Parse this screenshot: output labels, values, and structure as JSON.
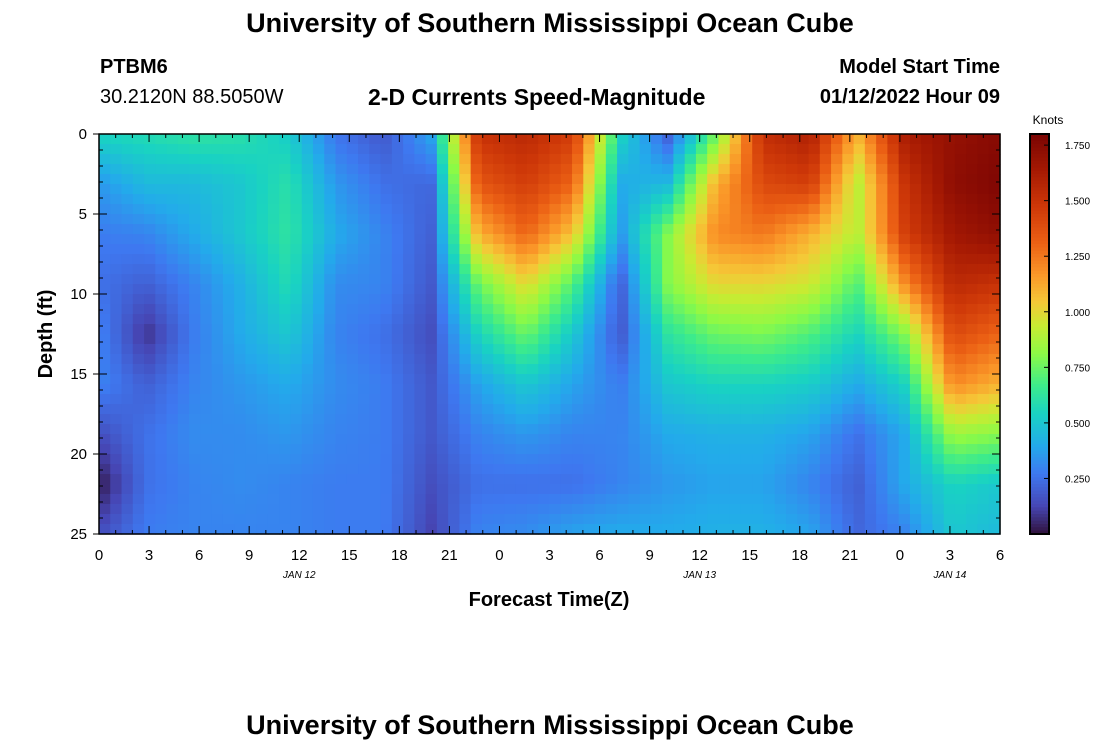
{
  "header": {
    "title": "University of Southern Mississippi Ocean Cube",
    "station": "PTBM6",
    "location": "30.2120N  88.5050W",
    "subtitle": "2-D Currents Speed-Magnitude",
    "model_start_label": "Model Start Time",
    "model_start_value": "01/12/2022 Hour 09"
  },
  "footer": {
    "title": "University of Southern Mississippi Ocean Cube"
  },
  "chart_data": {
    "type": "heatmap",
    "xlabel": "Forecast Time(Z)",
    "ylabel": "Depth (ft)",
    "x_range_hours": [
      0,
      54
    ],
    "y_range": [
      0,
      25
    ],
    "y_inverted": true,
    "x_tick_labels": [
      "0",
      "3",
      "6",
      "9",
      "12",
      "15",
      "18",
      "21",
      "0",
      "3",
      "6",
      "9",
      "12",
      "15",
      "18",
      "21",
      "0",
      "3",
      "6"
    ],
    "y_tick_labels": [
      "0",
      "5",
      "10",
      "15",
      "20",
      "25"
    ],
    "date_labels": [
      {
        "label": "JAN 12",
        "hour": 12
      },
      {
        "label": "JAN 13",
        "hour": 36
      },
      {
        "label": "JAN 14",
        "hour": 51
      }
    ],
    "colorbar": {
      "unit": "Knots",
      "min": 0.0,
      "max": 1.8,
      "tick_labels": [
        "1.750",
        "1.500",
        "1.250",
        "1.000",
        "0.750",
        "0.500",
        "0.250"
      ],
      "tick_values": [
        1.75,
        1.5,
        1.25,
        1.0,
        0.75,
        0.5,
        0.25
      ]
    },
    "grid": false,
    "speed_field_knots": [
      [
        0.55,
        0.58,
        0.62,
        0.6,
        0.52,
        0.26,
        0.18,
        0.38,
        1.5,
        1.55,
        1.45,
        0.55,
        0.2,
        0.75,
        1.52,
        1.6,
        1.1,
        1.62,
        1.7,
        1.75
      ],
      [
        0.35,
        0.45,
        0.45,
        0.5,
        0.6,
        0.35,
        0.25,
        0.22,
        1.35,
        1.45,
        1.3,
        0.4,
        0.45,
        1.1,
        1.4,
        1.45,
        0.9,
        1.5,
        1.72,
        1.78
      ],
      [
        0.28,
        0.3,
        0.4,
        0.5,
        0.62,
        0.4,
        0.3,
        0.2,
        1.1,
        1.3,
        1.05,
        0.35,
        0.8,
        1.2,
        1.25,
        1.1,
        0.9,
        1.45,
        1.65,
        1.72
      ],
      [
        0.25,
        0.2,
        0.3,
        0.42,
        0.58,
        0.32,
        0.3,
        0.18,
        0.75,
        1.0,
        0.7,
        0.2,
        0.8,
        1.0,
        1.0,
        0.95,
        0.7,
        1.2,
        1.55,
        1.5
      ],
      [
        0.3,
        0.08,
        0.28,
        0.4,
        0.5,
        0.3,
        0.25,
        0.15,
        0.55,
        0.75,
        0.5,
        0.18,
        0.62,
        0.75,
        0.78,
        0.7,
        0.55,
        0.8,
        1.4,
        1.3
      ],
      [
        0.3,
        0.2,
        0.3,
        0.35,
        0.4,
        0.32,
        0.28,
        0.18,
        0.38,
        0.5,
        0.38,
        0.28,
        0.5,
        0.55,
        0.55,
        0.52,
        0.4,
        0.55,
        1.2,
        1.1
      ],
      [
        0.15,
        0.25,
        0.32,
        0.32,
        0.35,
        0.3,
        0.28,
        0.18,
        0.3,
        0.35,
        0.3,
        0.3,
        0.4,
        0.42,
        0.42,
        0.38,
        0.25,
        0.4,
        0.85,
        0.8
      ],
      [
        0.02,
        0.25,
        0.3,
        0.32,
        0.3,
        0.28,
        0.28,
        0.15,
        0.25,
        0.25,
        0.25,
        0.3,
        0.35,
        0.38,
        0.38,
        0.3,
        0.2,
        0.4,
        0.55,
        0.5
      ],
      [
        0.15,
        0.28,
        0.3,
        0.3,
        0.3,
        0.28,
        0.28,
        0.12,
        0.3,
        0.32,
        0.38,
        0.4,
        0.4,
        0.42,
        0.42,
        0.38,
        0.22,
        0.3,
        0.5,
        0.45
      ]
    ]
  }
}
